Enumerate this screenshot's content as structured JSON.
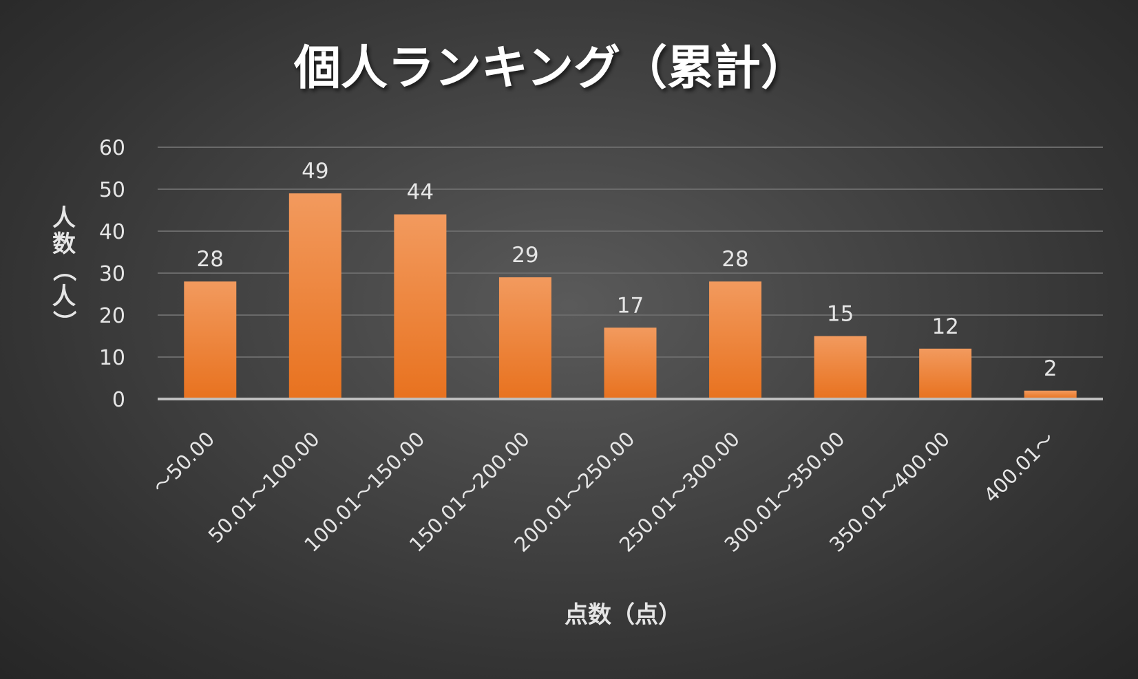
{
  "chart_data": {
    "type": "bar",
    "title": "個人ランキング（累計）",
    "xlabel": "点数（点）",
    "ylabel": "人数（人）",
    "categories": [
      "～50.00",
      "50.01～100.00",
      "100.01～150.00",
      "150.01～200.00",
      "200.01～250.00",
      "250.01～300.00",
      "300.01～350.00",
      "350.01～400.00",
      "400.01～"
    ],
    "values": [
      28,
      49,
      44,
      29,
      17,
      28,
      15,
      12,
      2
    ],
    "ylim": [
      0,
      60
    ],
    "yticks": [
      0,
      10,
      20,
      30,
      40,
      50,
      60
    ],
    "grid": true,
    "legend": "none",
    "colors": {
      "bar_top": "#f29a5e",
      "bar_bottom": "#e8721f",
      "background": "#4a4a4a"
    }
  }
}
